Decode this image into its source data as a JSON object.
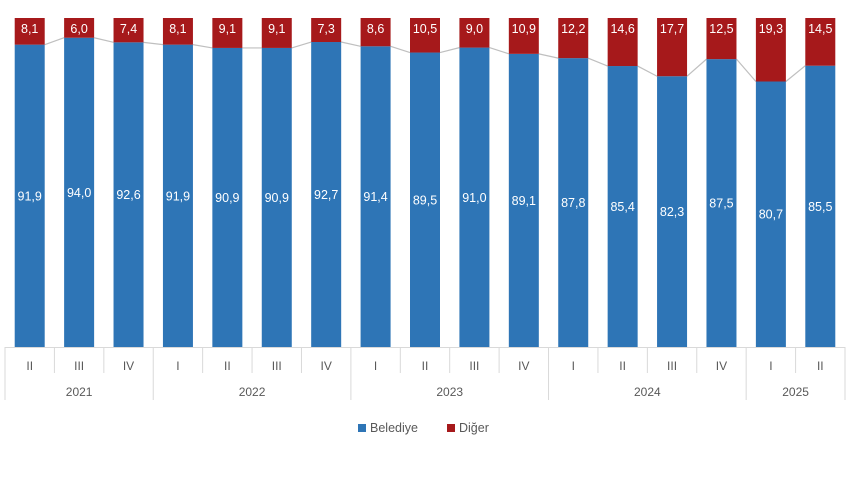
{
  "chart_data": {
    "type": "bar",
    "stacked": true,
    "percent_stacked": true,
    "years": [
      {
        "label": "2021",
        "quarters": 3
      },
      {
        "label": "2022",
        "quarters": 4
      },
      {
        "label": "2023",
        "quarters": 4
      },
      {
        "label": "2024",
        "quarters": 4
      },
      {
        "label": "2025",
        "quarters": 2
      }
    ],
    "categories": [
      "II",
      "III",
      "IV",
      "I",
      "II",
      "III",
      "IV",
      "I",
      "II",
      "III",
      "IV",
      "I",
      "II",
      "III",
      "IV",
      "I",
      "II"
    ],
    "series": [
      {
        "name": "Belediye",
        "color": "#2E75B6",
        "values": [
          91.9,
          94.0,
          92.6,
          91.9,
          90.9,
          90.9,
          92.7,
          91.4,
          89.5,
          91.0,
          89.1,
          87.8,
          85.4,
          82.3,
          87.5,
          80.7,
          85.5
        ]
      },
      {
        "name": "Diğer",
        "color": "#A6191B",
        "values": [
          8.1,
          6.0,
          7.4,
          8.1,
          9.1,
          9.1,
          7.3,
          8.6,
          10.5,
          9.0,
          10.9,
          12.2,
          14.6,
          17.7,
          12.5,
          19.3,
          14.5
        ]
      }
    ],
    "value_labels": {
      "Belediye": [
        "91,9",
        "94,0",
        "92,6",
        "91,9",
        "90,9",
        "90,9",
        "92,7",
        "91,4",
        "89,5",
        "91,0",
        "89,1",
        "87,8",
        "85,4",
        "82,3",
        "87,5",
        "80,7",
        "85,5"
      ],
      "Diğer": [
        "8,1",
        "6,0",
        "7,4",
        "8,1",
        "9,1",
        "9,1",
        "7,3",
        "8,6",
        "10,5",
        "9,0",
        "10,9",
        "12,2",
        "14,6",
        "17,7",
        "12,5",
        "19,3",
        "14,5"
      ]
    },
    "connector_line_color": "#BFBFBF",
    "ylim": [
      0,
      100
    ],
    "legend_position": "bottom",
    "grid": false
  }
}
